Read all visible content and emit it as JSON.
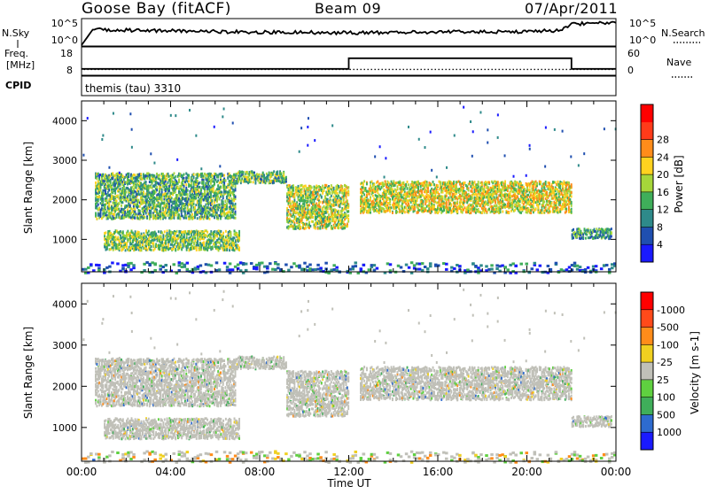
{
  "header": {
    "station": "Goose Bay (fitACF)",
    "beam": "Beam 09",
    "date": "07/Apr/2011"
  },
  "panels": {
    "nsky": {
      "label": "N.Sky",
      "ticks_left": [
        "10^5",
        "10^0"
      ],
      "ticks_right": [
        "10^5",
        "10^0"
      ],
      "right_label": "N.Search"
    },
    "freq": {
      "label_line1": "Freq.",
      "label_line2": "[MHz]",
      "ticks_left": [
        "18",
        "8"
      ],
      "ticks_right": [
        "60",
        "0"
      ],
      "right_label": "Nave"
    },
    "cpid": {
      "label": "CPID",
      "mode": "themis (tau) 3310"
    }
  },
  "power_colorbar": {
    "label": "Power [dB]",
    "ticks": [
      "4",
      "8",
      "12",
      "16",
      "20",
      "24",
      "28"
    ],
    "colors": [
      "#1a1aff",
      "#1f4fb0",
      "#2e8a8a",
      "#3fae5a",
      "#a6d63a",
      "#ffd21f",
      "#ff8c1a",
      "#ff3b1a",
      "#ff0000"
    ]
  },
  "velocity_colorbar": {
    "label": "Velocity [m s-1]",
    "ticks": [
      "1000",
      "500",
      "100",
      "25",
      "-25",
      "-100",
      "-500",
      "-1000"
    ],
    "colors": [
      "#1a1aff",
      "#2e6bcf",
      "#3fae5a",
      "#5fd040",
      "#c0c0b8",
      "#f0d020",
      "#ff8c1a",
      "#ff4a1a",
      "#ff0000"
    ]
  },
  "chart_data": [
    {
      "type": "heatmap",
      "name": "Power",
      "ylabel": "Slant Range [km]",
      "yticks": [
        1000,
        2000,
        3000,
        4000
      ],
      "ylim": [
        180,
        4500
      ],
      "xlim": [
        0,
        24
      ],
      "xticks": [
        0,
        4,
        8,
        12,
        16,
        20,
        24
      ],
      "bands": [
        {
          "t0": 0.6,
          "t1": 6.9,
          "r0": 1550,
          "r1": 2700,
          "mean_db": 14
        },
        {
          "t0": 6.9,
          "t1": 9.2,
          "r0": 2450,
          "r1": 2750,
          "mean_db": 14
        },
        {
          "t0": 9.2,
          "t1": 12.0,
          "r0": 1300,
          "r1": 2400,
          "mean_db": 18
        },
        {
          "t0": 1.0,
          "t1": 7.1,
          "r0": 750,
          "r1": 1250,
          "mean_db": 16
        },
        {
          "t0": 12.5,
          "t1": 22.0,
          "r0": 1700,
          "r1": 2500,
          "mean_db": 20
        },
        {
          "t0": 22.0,
          "t1": 23.8,
          "r0": 1050,
          "r1": 1300,
          "mean_db": 12
        },
        {
          "t0": 0.0,
          "t1": 24.0,
          "r0": 180,
          "r1": 450,
          "mean_db": 8
        }
      ]
    },
    {
      "type": "heatmap",
      "name": "Velocity",
      "ylabel": "Slant Range [km]",
      "yticks": [
        1000,
        2000,
        3000,
        4000
      ],
      "ylim": [
        180,
        4500
      ],
      "xlim": [
        0,
        24
      ],
      "xticks": [
        0,
        4,
        8,
        12,
        16,
        20,
        24
      ],
      "xticklabels": [
        "00:00",
        "04:00",
        "08:00",
        "12:00",
        "16:00",
        "20:00",
        "00:00"
      ],
      "xlabel": "Time UT",
      "bands": [
        {
          "t0": 0.6,
          "t1": 6.9,
          "r0": 1550,
          "r1": 2700,
          "mean_vel": 0
        },
        {
          "t0": 6.9,
          "t1": 9.2,
          "r0": 2450,
          "r1": 2750,
          "mean_vel": 0
        },
        {
          "t0": 9.2,
          "t1": 12.0,
          "r0": 1300,
          "r1": 2400,
          "mean_vel": 0
        },
        {
          "t0": 1.0,
          "t1": 7.1,
          "r0": 750,
          "r1": 1250,
          "mean_vel": 0
        },
        {
          "t0": 12.5,
          "t1": 22.0,
          "r0": 1700,
          "r1": 2500,
          "mean_vel": 0
        },
        {
          "t0": 22.0,
          "t1": 23.8,
          "r0": 1050,
          "r1": 1300,
          "mean_vel": 0
        },
        {
          "t0": 0.0,
          "t1": 24.0,
          "r0": 180,
          "r1": 450,
          "mean_vel": 0
        }
      ]
    },
    {
      "type": "line",
      "name": "N.Sky",
      "x": [
        0,
        0.5,
        4,
        8,
        12,
        16,
        20,
        21.5,
        22,
        24
      ],
      "y_log": [
        0,
        2.5,
        2.3,
        2.1,
        2.0,
        2.1,
        2.2,
        2.4,
        3.4,
        3.6
      ]
    },
    {
      "type": "line",
      "name": "Freq",
      "x": [
        0,
        12,
        12,
        22,
        22,
        24
      ],
      "y": [
        10.6,
        10.6,
        15.6,
        15.6,
        10.6,
        10.6
      ]
    }
  ]
}
